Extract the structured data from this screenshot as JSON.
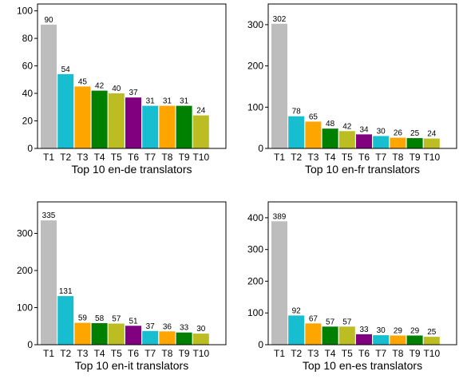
{
  "chart_data": [
    {
      "type": "bar",
      "categories": [
        "T1",
        "T2",
        "T3",
        "T4",
        "T5",
        "T6",
        "T7",
        "T8",
        "T9",
        "T10"
      ],
      "values": [
        90,
        54,
        45,
        42,
        40,
        37,
        31,
        31,
        31,
        24
      ],
      "ylim": [
        0,
        105
      ],
      "yticks": [
        0,
        20,
        40,
        60,
        80,
        100
      ],
      "xlabel": "Top 10 en-de translators",
      "ylabel": "",
      "title": "",
      "colors": [
        "#bdbdbd",
        "#17becf",
        "#ffa500",
        "#008000",
        "#bcbd22",
        "#800080",
        "#17becf",
        "#ffa500",
        "#008000",
        "#bcbd22"
      ]
    },
    {
      "type": "bar",
      "categories": [
        "T1",
        "T2",
        "T3",
        "T4",
        "T5",
        "T6",
        "T7",
        "T8",
        "T9",
        "T10"
      ],
      "values": [
        302,
        78,
        65,
        48,
        42,
        34,
        30,
        26,
        25,
        24
      ],
      "ylim": [
        0,
        350
      ],
      "yticks": [
        0,
        100,
        200,
        300
      ],
      "xlabel": "Top 10 en-fr translators",
      "ylabel": "",
      "title": "",
      "colors": [
        "#bdbdbd",
        "#17becf",
        "#ffa500",
        "#008000",
        "#bcbd22",
        "#800080",
        "#17becf",
        "#ffa500",
        "#008000",
        "#bcbd22"
      ]
    },
    {
      "type": "bar",
      "categories": [
        "T1",
        "T2",
        "T3",
        "T4",
        "T5",
        "T6",
        "T7",
        "T8",
        "T9",
        "T10"
      ],
      "values": [
        335,
        131,
        59,
        58,
        57,
        51,
        37,
        36,
        33,
        30
      ],
      "ylim": [
        0,
        385
      ],
      "yticks": [
        0,
        100,
        200,
        300
      ],
      "xlabel": "Top 10 en-it translators",
      "ylabel": "",
      "title": "",
      "colors": [
        "#bdbdbd",
        "#17becf",
        "#ffa500",
        "#008000",
        "#bcbd22",
        "#800080",
        "#17becf",
        "#ffa500",
        "#008000",
        "#bcbd22"
      ]
    },
    {
      "type": "bar",
      "categories": [
        "T1",
        "T2",
        "T3",
        "T4",
        "T5",
        "T6",
        "T7",
        "T8",
        "T9",
        "T10"
      ],
      "values": [
        389,
        92,
        67,
        57,
        57,
        33,
        30,
        29,
        29,
        25
      ],
      "ylim": [
        0,
        450
      ],
      "yticks": [
        0,
        100,
        200,
        300,
        400
      ],
      "xlabel": "Top 10 en-es translators",
      "ylabel": "",
      "title": "",
      "colors": [
        "#bdbdbd",
        "#17becf",
        "#ffa500",
        "#008000",
        "#bcbd22",
        "#800080",
        "#17becf",
        "#ffa500",
        "#008000",
        "#bcbd22"
      ]
    }
  ]
}
